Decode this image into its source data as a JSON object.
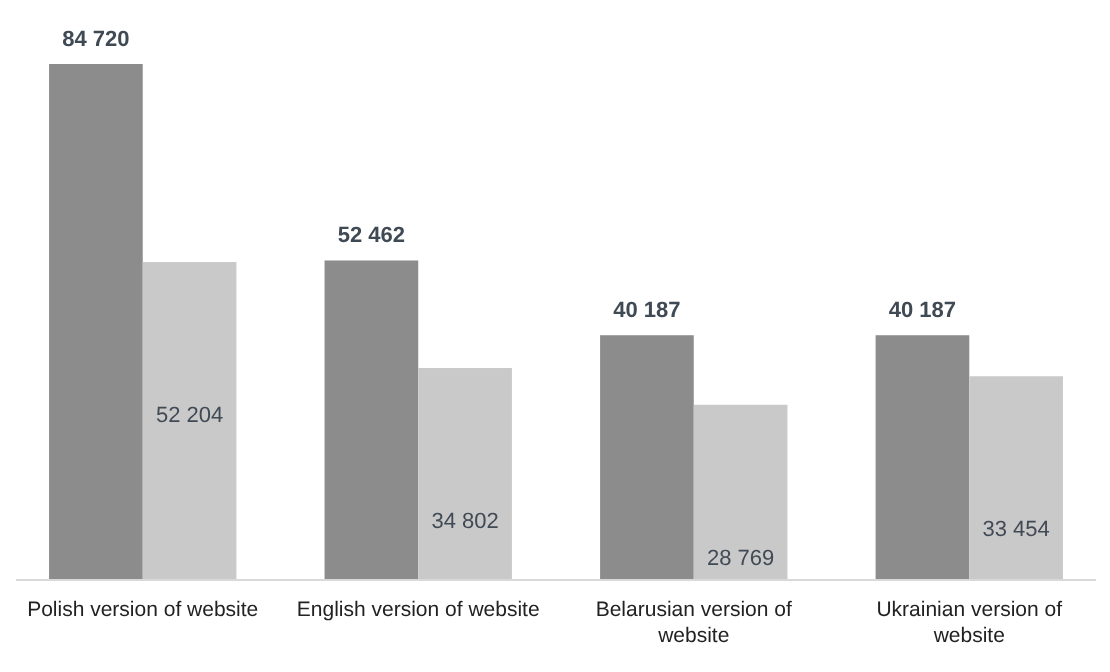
{
  "chart_data": {
    "type": "bar",
    "relative": false,
    "categories": [
      "Polish version of website",
      "English version of website",
      "Belarusian version of website",
      "Ukrainian version of website"
    ],
    "series": [
      {
        "color": "#8c8c8c",
        "values": [
          84720,
          52462,
          40187,
          40187
        ],
        "value_labels": [
          "84 720",
          "52 462",
          "40 187",
          "40 187"
        ]
      },
      {
        "color": "#c9c9c9",
        "values": [
          52204,
          34802,
          28769,
          33454
        ],
        "value_labels": [
          "52 204",
          "34 802",
          "28 769",
          "33 454"
        ]
      }
    ]
  }
}
